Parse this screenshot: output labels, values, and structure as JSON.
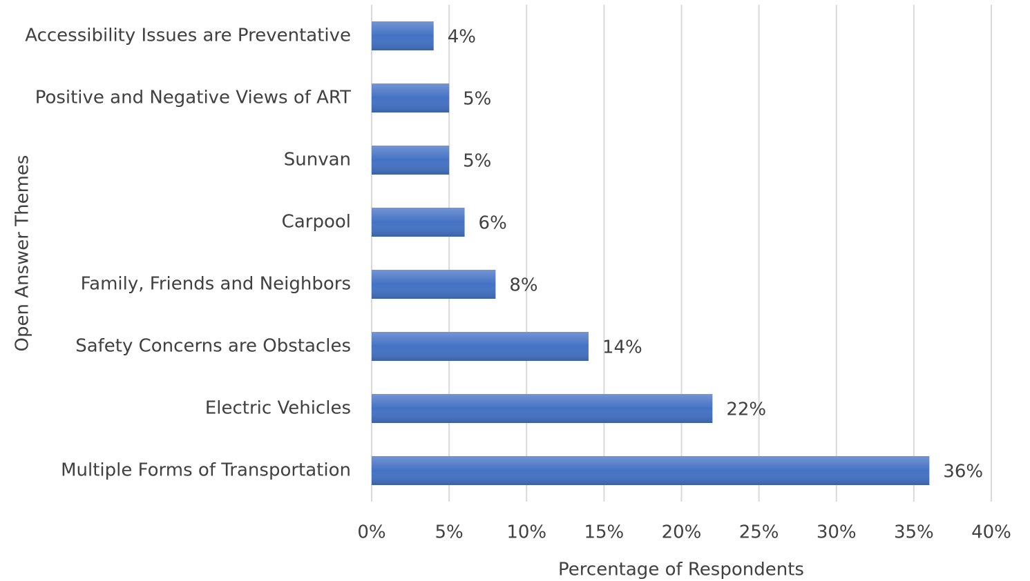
{
  "chart_data": {
    "type": "bar",
    "orientation": "horizontal",
    "x_label": "Percentage of Respondents",
    "y_label": "Open Answer Themes",
    "categories": [
      "Accessibility Issues are Preventative",
      "Positive and Negative Views of ART",
      "Sunvan",
      "Carpool",
      "Family, Friends and Neighbors",
      "Safety Concerns are Obstacles",
      "Electric Vehicles",
      "Multiple Forms of Transportation"
    ],
    "values": [
      4,
      5,
      5,
      6,
      8,
      14,
      22,
      36
    ],
    "value_labels": [
      "4%",
      "5%",
      "5%",
      "6%",
      "8%",
      "14%",
      "22%",
      "36%"
    ],
    "color": "#4472c4",
    "xlim": [
      0,
      40
    ],
    "xticks": [
      {
        "value": 0,
        "label": "0%"
      },
      {
        "value": 5,
        "label": "5%"
      },
      {
        "value": 10,
        "label": "10%"
      },
      {
        "value": 15,
        "label": "15%"
      },
      {
        "value": 20,
        "label": "20%"
      },
      {
        "value": 25,
        "label": "25%"
      },
      {
        "value": 30,
        "label": "30%"
      },
      {
        "value": 35,
        "label": "35%"
      },
      {
        "value": 40,
        "label": "40%"
      }
    ],
    "grid": true
  }
}
